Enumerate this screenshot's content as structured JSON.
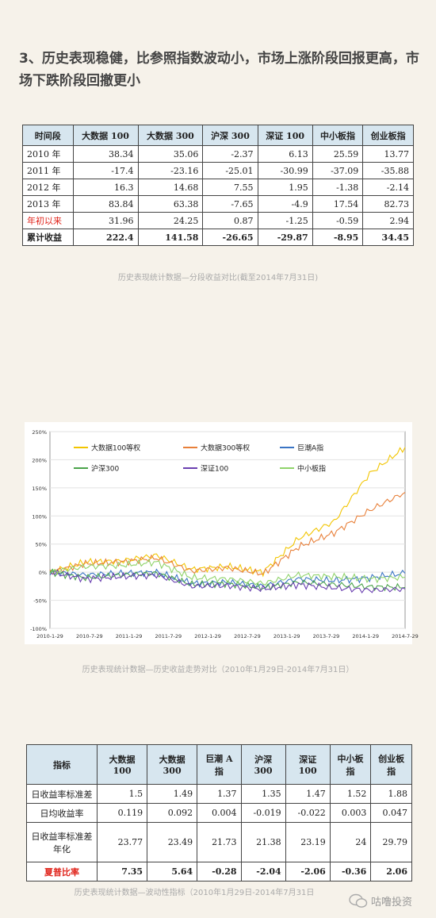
{
  "heading": "3、历史表现稳健，比参照指数波动小，市场上涨阶段回报更高，市场下跌阶段回撤更小",
  "table1": {
    "headers": [
      "时间段",
      "大数据 100",
      "大数据 300",
      "沪深 300",
      "深证 100",
      "中小板指",
      "创业板指"
    ],
    "rows": [
      {
        "label": "2010 年",
        "values": [
          "38.34",
          "35.06",
          "-2.37",
          "6.13",
          "25.59",
          "13.77"
        ]
      },
      {
        "label": "2011 年",
        "values": [
          "-17.4",
          "-23.16",
          "-25.01",
          "-30.99",
          "-37.09",
          "-35.88"
        ]
      },
      {
        "label": "2012 年",
        "values": [
          "16.3",
          "14.68",
          "7.55",
          "1.95",
          "-1.38",
          "-2.14"
        ]
      },
      {
        "label": "2013 年",
        "values": [
          "83.84",
          "63.38",
          "-7.65",
          "-4.9",
          "17.54",
          "82.73"
        ]
      },
      {
        "label": "年初以来",
        "values": [
          "31.96",
          "24.25",
          "0.87",
          "-1.25",
          "-0.59",
          "2.94"
        ]
      },
      {
        "label": "累计收益",
        "values": [
          "222.4",
          "141.58",
          "-26.65",
          "-29.87",
          "-8.95",
          "34.45"
        ]
      }
    ],
    "caption": "历史表现统计数据—分段收益对比(截至2014年7月31日)"
  },
  "chart_data": {
    "type": "line",
    "y_ticks": [
      "250%",
      "200%",
      "150%",
      "100%",
      "50%",
      "0%",
      "-50%",
      "-100%"
    ],
    "ylim": [
      -100,
      250
    ],
    "x_ticks": [
      "2010-1-29",
      "2010-7-29",
      "2011-1-29",
      "2011-7-29",
      "2012-1-29",
      "2012-7-29",
      "2013-1-29",
      "2013-7-29",
      "2014-1-29",
      "2014-7-29"
    ],
    "grid": true,
    "legend_position": "top",
    "series": [
      {
        "name": "大数据100等权",
        "color": "#f2c500",
        "values": [
          0,
          18,
          20,
          30,
          5,
          10,
          0,
          60,
          90,
          175,
          222
        ]
      },
      {
        "name": "大数据300等权",
        "color": "#e8803a",
        "values": [
          0,
          15,
          18,
          25,
          2,
          8,
          -3,
          45,
          70,
          110,
          142
        ]
      },
      {
        "name": "巨潮A指",
        "color": "#3a74c4",
        "values": [
          0,
          -5,
          -2,
          0,
          -20,
          -18,
          -25,
          -12,
          -15,
          -10,
          -2
        ]
      },
      {
        "name": "沪深300",
        "color": "#4aa34a",
        "values": [
          0,
          -10,
          -5,
          -2,
          -22,
          -20,
          -28,
          -18,
          -22,
          -26,
          -27
        ]
      },
      {
        "name": "深证100",
        "color": "#6a3fb0",
        "values": [
          0,
          -12,
          -8,
          -5,
          -25,
          -24,
          -30,
          -22,
          -28,
          -32,
          -30
        ]
      },
      {
        "name": "中小板指",
        "color": "#8fd36a",
        "values": [
          0,
          10,
          12,
          18,
          -10,
          -12,
          -20,
          -5,
          -8,
          -12,
          -9
        ]
      }
    ]
  },
  "chart_caption": "历史表现统计数据—历史收益走势对比（2010年1月29日-2014年7月31日）",
  "table2": {
    "headers": [
      "指标",
      "大数据 100",
      "大数据 300",
      "巨潮 A 指",
      "沪深 300",
      "深证 100",
      "中小板指",
      "创业板指"
    ],
    "rows": [
      {
        "label": "日收益率标准差",
        "values": [
          "1.5",
          "1.49",
          "1.37",
          "1.35",
          "1.47",
          "1.52",
          "1.88"
        ]
      },
      {
        "label": "日均收益率",
        "values": [
          "0.119",
          "0.092",
          "0.004",
          "-0.019",
          "-0.022",
          "0.003",
          "0.047"
        ]
      },
      {
        "label": "日收益率标准差年化",
        "values": [
          "23.77",
          "23.49",
          "21.73",
          "21.38",
          "23.19",
          "24",
          "29.79"
        ]
      },
      {
        "label": "夏普比率",
        "values": [
          "7.35",
          "5.64",
          "-0.28",
          "-2.04",
          "-2.06",
          "-0.36",
          "2.06"
        ]
      }
    ],
    "caption": "历史表现统计数据—波动性指标（2010年1月29日-2014年7月31日"
  },
  "watermark": "咕噜投资"
}
